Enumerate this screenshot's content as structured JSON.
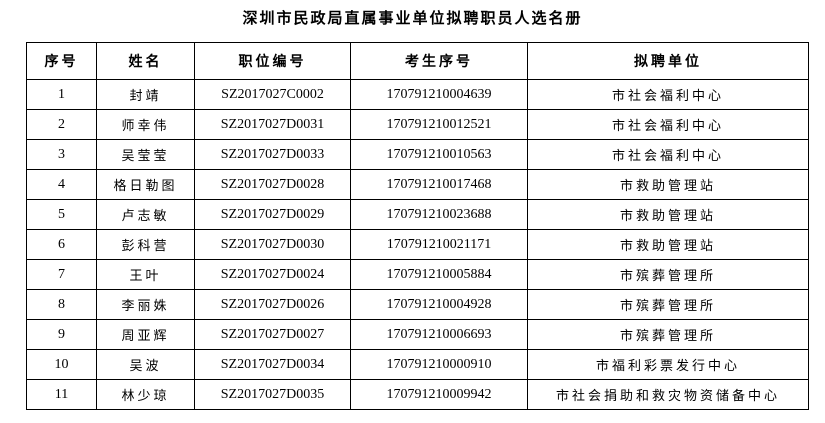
{
  "title": "深圳市民政局直属事业单位拟聘职员人选名册",
  "table": {
    "headers": [
      "序号",
      "姓名",
      "职位编号",
      "考生序号",
      "拟聘单位"
    ],
    "rows": [
      [
        "1",
        "封靖",
        "SZ2017027C0002",
        "170791210004639",
        "市社会福利中心"
      ],
      [
        "2",
        "师幸伟",
        "SZ2017027D0031",
        "170791210012521",
        "市社会福利中心"
      ],
      [
        "3",
        "吴莹莹",
        "SZ2017027D0033",
        "170791210010563",
        "市社会福利中心"
      ],
      [
        "4",
        "格日勒图",
        "SZ2017027D0028",
        "170791210017468",
        "市救助管理站"
      ],
      [
        "5",
        "卢志敏",
        "SZ2017027D0029",
        "170791210023688",
        "市救助管理站"
      ],
      [
        "6",
        "彭科营",
        "SZ2017027D0030",
        "170791210021171",
        "市救助管理站"
      ],
      [
        "7",
        "王叶",
        "SZ2017027D0024",
        "170791210005884",
        "市殡葬管理所"
      ],
      [
        "8",
        "李丽姝",
        "SZ2017027D0026",
        "170791210004928",
        "市殡葬管理所"
      ],
      [
        "9",
        "周亚辉",
        "SZ2017027D0027",
        "170791210006693",
        "市殡葬管理所"
      ],
      [
        "10",
        "吴波",
        "SZ2017027D0034",
        "170791210000910",
        "市福利彩票发行中心"
      ],
      [
        "11",
        "林少琼",
        "SZ2017027D0035",
        "170791210009942",
        "市社会捐助和救灾物资储备中心"
      ]
    ]
  }
}
